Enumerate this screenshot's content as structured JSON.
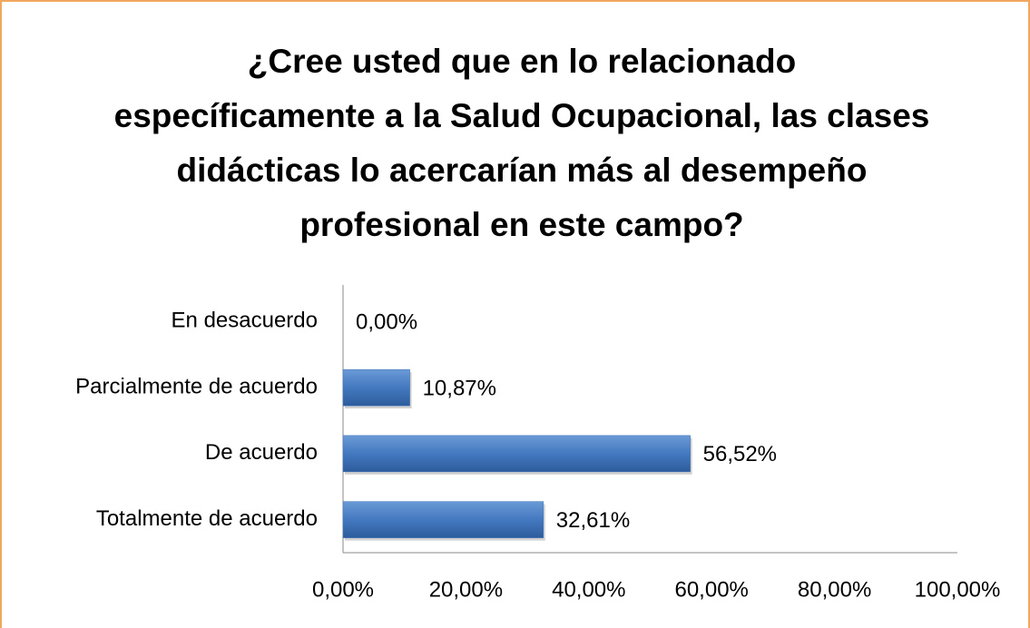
{
  "chart_data": {
    "type": "hbar",
    "title": "¿Cree usted que en lo relacionado específicamente a la Salud Ocupacional, las clases didácticas lo acercarían más al desempeño profesional en este campo?",
    "categories": [
      "En desacuerdo",
      "Parcialmente de acuerdo",
      "De acuerdo",
      "Totalmente de acuerdo"
    ],
    "values": [
      0,
      10.87,
      56.52,
      32.61
    ],
    "value_labels": [
      "0,00%",
      "10,87%",
      "56,52%",
      "32,61%"
    ],
    "color": "#3f73b8",
    "xlim": [
      0,
      100
    ],
    "xticks": [
      {
        "value": 0,
        "label": "0,00%"
      },
      {
        "value": 20,
        "label": "20,00%"
      },
      {
        "value": 40,
        "label": "40,00%"
      },
      {
        "value": 60,
        "label": "60,00%"
      },
      {
        "value": 80,
        "label": "80,00%"
      },
      {
        "value": 100,
        "label": "100,00%"
      }
    ],
    "grid": false
  }
}
